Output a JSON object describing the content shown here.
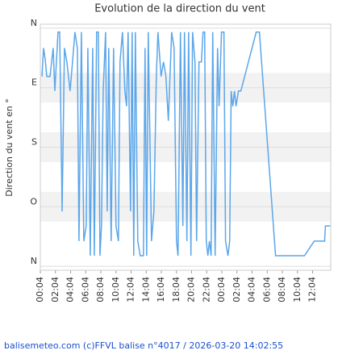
{
  "chart_data": {
    "type": "line",
    "title": "Evolution de la direction du vent",
    "y_label": "Direction du vent en °",
    "footer": "balisemeteo.com (c)FFVL balise n°4017 / 2026-03-20 14:02:55",
    "color": "#5ba6ea",
    "ylim": [
      -6,
      366
    ],
    "y_inverted": true,
    "yticks": [
      {
        "value": 0,
        "label": "N"
      },
      {
        "value": 90,
        "label": "E"
      },
      {
        "value": 180,
        "label": "S"
      },
      {
        "value": 270,
        "label": "O"
      },
      {
        "value": 360,
        "label": "N"
      }
    ],
    "xlim": [
      0,
      38.4
    ],
    "xticks": [
      {
        "value": 0,
        "label": "00:04"
      },
      {
        "value": 2,
        "label": "02:04"
      },
      {
        "value": 4,
        "label": "04:04"
      },
      {
        "value": 6,
        "label": "06:04"
      },
      {
        "value": 8,
        "label": "08:04"
      },
      {
        "value": 10,
        "label": "10:04"
      },
      {
        "value": 12,
        "label": "12:04"
      },
      {
        "value": 14,
        "label": "14:04"
      },
      {
        "value": 16,
        "label": "16:04"
      },
      {
        "value": 18,
        "label": "18:04"
      },
      {
        "value": 20,
        "label": "20:04"
      },
      {
        "value": 22,
        "label": "22:04"
      },
      {
        "value": 24,
        "label": "00:04"
      },
      {
        "value": 26,
        "label": "02:04"
      },
      {
        "value": 28,
        "label": "04:04"
      },
      {
        "value": 30,
        "label": "06:04"
      },
      {
        "value": 32,
        "label": "08:04"
      },
      {
        "value": 34,
        "label": "10:04"
      },
      {
        "value": 36,
        "label": "12:04"
      }
    ],
    "x": [
      0.21,
      0.43,
      0.64,
      0.85,
      1.28,
      1.7,
      1.92,
      2.34,
      2.56,
      2.88,
      3.19,
      3.51,
      3.94,
      4.26,
      4.58,
      4.9,
      5.11,
      5.43,
      5.75,
      6.07,
      6.28,
      6.6,
      6.92,
      7.14,
      7.45,
      7.67,
      7.88,
      8.09,
      8.31,
      8.63,
      8.84,
      9.05,
      9.37,
      9.69,
      10.01,
      10.33,
      10.54,
      10.86,
      11.18,
      11.4,
      11.61,
      11.93,
      12.14,
      12.35,
      12.57,
      12.89,
      13.21,
      13.63,
      13.84,
      14.06,
      14.27,
      14.7,
      15.02,
      15.34,
      15.55,
      15.97,
      16.29,
      16.61,
      16.93,
      17.36,
      17.68,
      18.0,
      18.21,
      18.53,
      18.85,
      19.06,
      19.38,
      19.6,
      19.91,
      20.13,
      20.45,
      20.66,
      20.98,
      21.3,
      21.51,
      21.73,
      21.94,
      22.15,
      22.36,
      22.58,
      22.79,
      23.11,
      23.43,
      23.64,
      23.96,
      24.28,
      24.49,
      24.81,
      25.03,
      25.24,
      25.45,
      25.67,
      25.88,
      26.2,
      26.52,
      28.54,
      28.97,
      31.1,
      34.93,
      36.21,
      37.59,
      37.7,
      38.34
    ],
    "values": [
      73,
      30,
      47,
      73,
      73,
      30,
      95,
      6,
      6,
      277,
      30,
      51,
      95,
      51,
      6,
      30,
      322,
      6,
      322,
      299,
      30,
      344,
      30,
      344,
      6,
      6,
      344,
      299,
      95,
      6,
      277,
      30,
      322,
      30,
      299,
      322,
      51,
      6,
      95,
      118,
      6,
      277,
      6,
      344,
      6,
      322,
      344,
      344,
      30,
      344,
      6,
      322,
      277,
      73,
      6,
      73,
      51,
      73,
      140,
      6,
      30,
      322,
      344,
      6,
      299,
      6,
      322,
      6,
      344,
      6,
      51,
      322,
      51,
      51,
      6,
      6,
      322,
      344,
      322,
      344,
      6,
      344,
      30,
      118,
      6,
      6,
      322,
      344,
      322,
      95,
      118,
      95,
      118,
      95,
      95,
      6,
      6,
      344,
      344,
      322,
      322,
      299,
      299
    ]
  }
}
